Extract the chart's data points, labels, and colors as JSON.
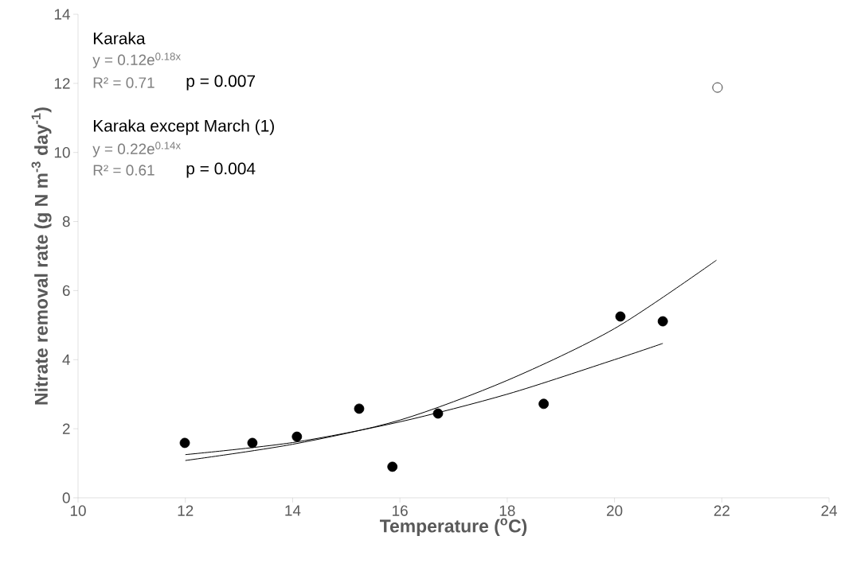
{
  "chart_data": {
    "type": "scatter",
    "xlabel": "Temperature ($^{o}$C)",
    "ylabel": "Nitrate removal rate (g N m$^{-3}$ day$^{-1}$)",
    "xlim": [
      10,
      24
    ],
    "xticks": [
      10,
      12,
      14,
      16,
      18,
      20,
      22,
      24
    ],
    "ylim": [
      0,
      14
    ],
    "yticks": [
      0,
      2,
      4,
      6,
      8,
      10,
      12,
      14
    ],
    "series": [
      {
        "marker": "circle",
        "color": "#000000",
        "x": [
          11.99,
          13.25,
          14.08,
          15.24,
          15.86,
          16.71,
          18.68,
          20.11,
          20.9
        ],
        "values": [
          1.59,
          1.59,
          1.77,
          2.58,
          0.9,
          2.44,
          2.72,
          5.25,
          5.11
        ]
      },
      {
        "marker": "circle",
        "color": "#000000",
        "x": [
          21.92
        ],
        "values": [
          11.88
        ]
      },
      {
        "type": "line",
        "marker": "none",
        "color": "#000000",
        "x": [
          12,
          14,
          16,
          18,
          20,
          21.9
        ],
        "values": [
          1.08,
          1.55,
          2.25,
          3.4,
          4.9,
          6.88
        ]
      },
      {
        "type": "line",
        "marker": "none",
        "color": "#000000",
        "x": [
          12,
          14,
          16,
          18,
          20,
          20.9
        ],
        "values": [
          1.25,
          1.6,
          2.2,
          3.0,
          4.0,
          4.47
        ]
      }
    ],
    "annotations": [
      "Karaka",
      "y = 0.12e$^{0.18x}$",
      "R² = 0.71",
      "p = 0.007",
      "Karaka except March (1)",
      "y = 0.22e$^{0.14x}$",
      "R² = 0.61",
      "p = 0.004"
    ]
  }
}
